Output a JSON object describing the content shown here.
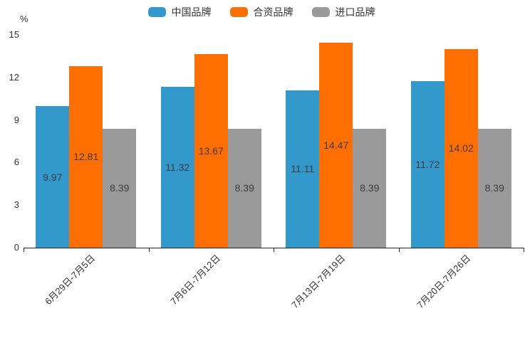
{
  "chart_data": {
    "type": "bar",
    "categories": [
      "6月29日-7月5日",
      "7月6日-7月12日",
      "7月13日-7月19日",
      "7月20日-7月26日"
    ],
    "series": [
      {
        "name": "中国品牌",
        "color": "#3398cc",
        "values": [
          9.97,
          11.32,
          11.11,
          11.72
        ]
      },
      {
        "name": "合资品牌",
        "color": "#ff6e00",
        "values": [
          12.81,
          13.67,
          14.47,
          14.02
        ]
      },
      {
        "name": "进口品牌",
        "color": "#9a9a9a",
        "values": [
          8.39,
          8.39,
          8.39,
          8.39
        ]
      }
    ],
    "title": "",
    "xlabel": "",
    "ylabel": "%",
    "ylim": [
      0,
      15
    ],
    "yticks": [
      0,
      3,
      6,
      9,
      12,
      15
    ],
    "grid": false,
    "legend_position": "top",
    "value_label_position": "inside-center",
    "value_label_decimals": 2,
    "axis_color": "#262626",
    "text_color": "#333333"
  }
}
